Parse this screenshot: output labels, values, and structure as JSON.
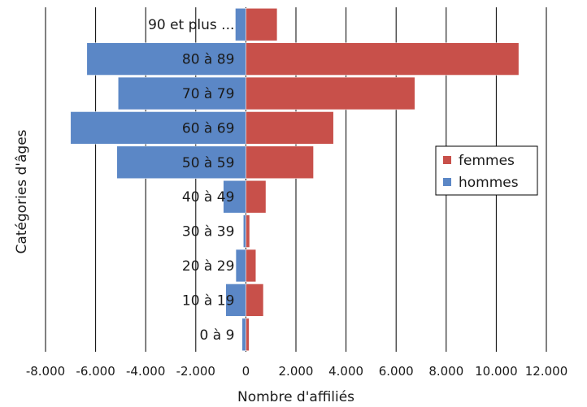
{
  "chart_data": {
    "type": "bar",
    "orientation": "horizontal-population-pyramid",
    "categories": [
      "0 à 9",
      "10 à 19",
      "20 à 29",
      "30 à 39",
      "40 à 49",
      "50 à 59",
      "60 à 69",
      "70 à 79",
      "80 à 89",
      "90 et plus ..."
    ],
    "series": [
      {
        "name": "femmes",
        "color": "#c8504a",
        "values": [
          130,
          700,
          400,
          150,
          800,
          2700,
          3500,
          6750,
          10900,
          1250
        ]
      },
      {
        "name": "hommes",
        "color": "#5b87c6",
        "values": [
          -150,
          -800,
          -400,
          -100,
          -900,
          -5150,
          -7000,
          -5100,
          -6350,
          -420
        ]
      }
    ],
    "xlabel": "Nombre d'affiliés",
    "ylabel": "Catégories d'âges",
    "xlim": [
      -8000,
      12000
    ],
    "xticks": [
      -8000,
      -6000,
      -4000,
      -2000,
      0,
      2000,
      4000,
      6000,
      8000,
      10000,
      12000
    ],
    "xtick_labels": [
      "-8.000",
      "-6.000",
      "-4.000",
      "-2.000",
      "0",
      "2.000",
      "4.000",
      "6.000",
      "8.000",
      "10.000",
      "12.000"
    ],
    "grid": "vertical",
    "legend": {
      "position": "right",
      "entries": [
        "femmes",
        "hommes"
      ]
    }
  }
}
